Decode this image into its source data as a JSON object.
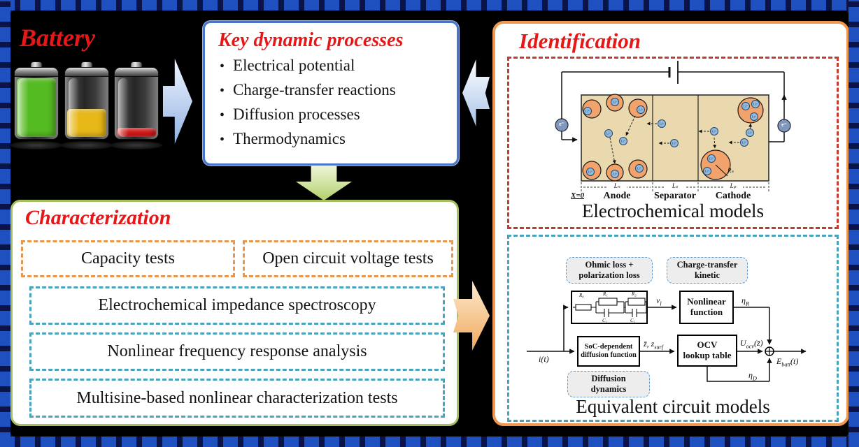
{
  "palette": {
    "title_red": "#e81717",
    "key_box_border": "#4a74c8",
    "char_box_border": "#a6c05e",
    "ident_box_border": "#f09850",
    "orange_dash": "#e8964a",
    "teal_dash": "#4aa3bc",
    "red_dash": "#c23c30",
    "frame_navy": "#0a1448",
    "frame_brick": "#1e50c0",
    "diagram_tan": "#ead9ae",
    "particle_orange": "#f2a36b",
    "ion_blue": "#92badb"
  },
  "battery": {
    "title": "Battery",
    "levels": [
      {
        "name": "high-charge",
        "color": "#55bb22"
      },
      {
        "name": "medium-charge",
        "color": "#e8b818"
      },
      {
        "name": "low-charge",
        "color": "#d81818"
      }
    ]
  },
  "key_processes": {
    "title": "Key dynamic processes",
    "items": [
      "Electrical potential",
      "Charge-transfer reactions",
      "Diffusion processes",
      "Thermodynamics"
    ]
  },
  "characterization": {
    "title": "Characterization",
    "tests": [
      {
        "label": "Capacity tests"
      },
      {
        "label": "Open circuit voltage tests"
      },
      {
        "label": "Electrochemical impedance spectroscopy"
      },
      {
        "label": "Nonlinear frequency response analysis"
      },
      {
        "label": "Multisine-based nonlinear characterization tests"
      }
    ]
  },
  "identification": {
    "title": "Identification",
    "electrochemical": {
      "caption": "Electrochemical models",
      "x_zero": "X=0",
      "regions": [
        "Anode",
        "Separator",
        "Cathode"
      ],
      "lengths": [
        "Lₙ",
        "Lₛ",
        "Lₚ"
      ],
      "particle_radius": "Rₛ",
      "electron": "e⁻",
      "ion": "Li⁺"
    },
    "circuit": {
      "caption": "Equivalent circuit models",
      "annotations": {
        "ohmic_1": "Ohmic loss +",
        "ohmic_2": "polarization loss",
        "ct_1": "Charge-transfer",
        "ct_2": "kinetic",
        "diff_1": "Diffusion",
        "diff_2": "dynamics"
      },
      "blocks": {
        "nonlinear_1": "Nonlinear",
        "nonlinear_2": "function",
        "soc_1": "SoC-dependent",
        "soc_2": "diffusion function",
        "ocv_1": "OCV",
        "ocv_2": "lookup table"
      },
      "elements": {
        "r0": "R₀",
        "r1": "R₁",
        "c1": "C₁",
        "r2": "R₂",
        "c2": "C₂"
      },
      "signals": {
        "input": "i(t)",
        "vl_base": "v",
        "vl_sub": "l",
        "eta": "η",
        "r_sub": "R",
        "d_sub": "D",
        "z_base": "z̄, z",
        "z_sub": "surf",
        "u_base": "U",
        "u_sub": "ocv",
        "u_arg": "(z̄)",
        "e_base": "E",
        "e_sub": "batt",
        "e_arg": "(t)"
      }
    }
  }
}
